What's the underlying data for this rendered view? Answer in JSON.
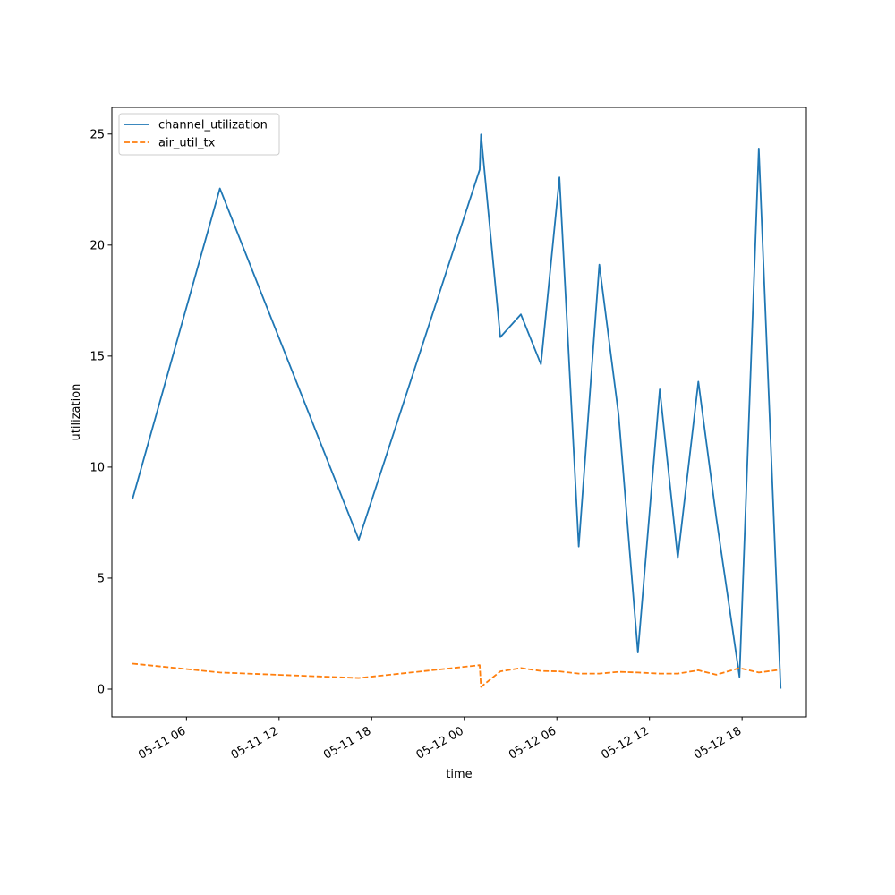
{
  "chart_data": {
    "type": "line",
    "xlabel": "time",
    "ylabel": "utilization",
    "xlim": [
      "2025-05-11 01:10",
      "2025-05-12 22:10"
    ],
    "ylim": [
      -1.25,
      26.2
    ],
    "x_ticks": [
      {
        "label": "05-11 06",
        "value": "2025-05-11 06:00"
      },
      {
        "label": "05-11 12",
        "value": "2025-05-11 12:00"
      },
      {
        "label": "05-11 18",
        "value": "2025-05-11 18:00"
      },
      {
        "label": "05-12 00",
        "value": "2025-05-12 00:00"
      },
      {
        "label": "05-12 06",
        "value": "2025-05-12 06:00"
      },
      {
        "label": "05-12 12",
        "value": "2025-05-12 12:00"
      },
      {
        "label": "05-12 18",
        "value": "2025-05-12 18:00"
      }
    ],
    "y_ticks": [
      0,
      5,
      10,
      15,
      20,
      25
    ],
    "legend_position": "top-left",
    "series": [
      {
        "name": "channel_utilization",
        "color": "#1f77b4",
        "style": "solid",
        "points": [
          {
            "x": "2025-05-11 02:30",
            "y": 8.55
          },
          {
            "x": "2025-05-11 08:10",
            "y": 22.55
          },
          {
            "x": "2025-05-11 17:10",
            "y": 6.73
          },
          {
            "x": "2025-05-12 01:00",
            "y": 23.4
          },
          {
            "x": "2025-05-12 01:05",
            "y": 24.98
          },
          {
            "x": "2025-05-12 02:20",
            "y": 15.85
          },
          {
            "x": "2025-05-12 03:40",
            "y": 16.88
          },
          {
            "x": "2025-05-12 04:58",
            "y": 14.63
          },
          {
            "x": "2025-05-12 06:10",
            "y": 23.05
          },
          {
            "x": "2025-05-12 07:25",
            "y": 6.42
          },
          {
            "x": "2025-05-12 08:45",
            "y": 19.12
          },
          {
            "x": "2025-05-12 10:00",
            "y": 12.35
          },
          {
            "x": "2025-05-12 11:15",
            "y": 1.65
          },
          {
            "x": "2025-05-12 12:40",
            "y": 13.5
          },
          {
            "x": "2025-05-12 13:50",
            "y": 5.9
          },
          {
            "x": "2025-05-12 15:10",
            "y": 13.85
          },
          {
            "x": "2025-05-12 16:20",
            "y": 7.7
          },
          {
            "x": "2025-05-12 17:50",
            "y": 0.55
          },
          {
            "x": "2025-05-12 19:05",
            "y": 24.35
          },
          {
            "x": "2025-05-12 20:30",
            "y": 0.02
          }
        ]
      },
      {
        "name": "air_util_tx",
        "color": "#ff7f0e",
        "style": "dashed",
        "points": [
          {
            "x": "2025-05-11 02:30",
            "y": 1.15
          },
          {
            "x": "2025-05-11 08:10",
            "y": 0.75
          },
          {
            "x": "2025-05-11 17:10",
            "y": 0.5
          },
          {
            "x": "2025-05-12 01:00",
            "y": 1.08
          },
          {
            "x": "2025-05-12 01:05",
            "y": 0.1
          },
          {
            "x": "2025-05-12 02:20",
            "y": 0.8
          },
          {
            "x": "2025-05-12 03:40",
            "y": 0.95
          },
          {
            "x": "2025-05-12 04:58",
            "y": 0.82
          },
          {
            "x": "2025-05-12 06:10",
            "y": 0.8
          },
          {
            "x": "2025-05-12 07:25",
            "y": 0.7
          },
          {
            "x": "2025-05-12 08:45",
            "y": 0.7
          },
          {
            "x": "2025-05-12 10:00",
            "y": 0.78
          },
          {
            "x": "2025-05-12 11:15",
            "y": 0.75
          },
          {
            "x": "2025-05-12 12:40",
            "y": 0.7
          },
          {
            "x": "2025-05-12 13:50",
            "y": 0.7
          },
          {
            "x": "2025-05-12 15:10",
            "y": 0.85
          },
          {
            "x": "2025-05-12 16:20",
            "y": 0.65
          },
          {
            "x": "2025-05-12 17:50",
            "y": 0.95
          },
          {
            "x": "2025-05-12 19:05",
            "y": 0.75
          },
          {
            "x": "2025-05-12 20:30",
            "y": 0.88
          }
        ]
      }
    ]
  }
}
